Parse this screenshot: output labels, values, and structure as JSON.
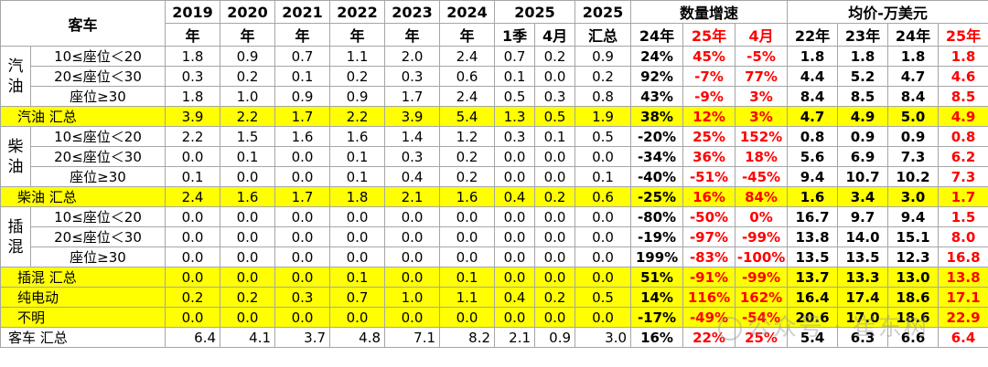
{
  "header": {
    "category": "客车",
    "years": [
      {
        "top": "2019",
        "bottom": "年"
      },
      {
        "top": "2020",
        "bottom": "年"
      },
      {
        "top": "2021",
        "bottom": "年"
      },
      {
        "top": "2022",
        "bottom": "年"
      },
      {
        "top": "2023",
        "bottom": "年"
      },
      {
        "top": "2024",
        "bottom": "年"
      }
    ],
    "y2025": "2025",
    "q1": "1季",
    "apr": "4月",
    "y2025sum_top": "2025",
    "y2025sum_bottom": "汇总",
    "growth": "数量增速",
    "growth_cols": [
      "24年",
      "25年",
      "4月"
    ],
    "price": "均价-万美元",
    "price_cols": [
      "22年",
      "23年",
      "24年",
      "25年"
    ]
  },
  "groups": {
    "gasoline": "汽\n油",
    "diesel": "柴\n油",
    "phev": "插\n混"
  },
  "rows": [
    {
      "label": "10≤座位＜20",
      "v": [
        "1.8",
        "0.9",
        "0.7",
        "1.1",
        "2.0",
        "2.4",
        "0.7",
        "0.2",
        "0.9"
      ],
      "g": [
        "24%",
        "45%",
        "-5%"
      ],
      "p": [
        "1.8",
        "1.8",
        "1.8",
        "1.8"
      ]
    },
    {
      "label": "20≤座位＜30",
      "v": [
        "0.3",
        "0.2",
        "0.1",
        "0.2",
        "0.3",
        "0.6",
        "0.1",
        "0.0",
        "0.2"
      ],
      "g": [
        "92%",
        "-7%",
        "77%"
      ],
      "p": [
        "4.4",
        "5.2",
        "4.7",
        "4.6"
      ]
    },
    {
      "label": "座位≥30",
      "v": [
        "1.8",
        "1.0",
        "0.9",
        "0.9",
        "1.7",
        "2.4",
        "0.5",
        "0.3",
        "0.8"
      ],
      "g": [
        "43%",
        "-9%",
        "3%"
      ],
      "p": [
        "8.4",
        "8.5",
        "8.4",
        "8.5"
      ]
    },
    {
      "label": "汽油 汇总",
      "v": [
        "3.9",
        "2.2",
        "1.7",
        "2.2",
        "3.9",
        "5.4",
        "1.3",
        "0.5",
        "1.9"
      ],
      "g": [
        "38%",
        "12%",
        "3%"
      ],
      "p": [
        "4.7",
        "4.9",
        "5.0",
        "4.9"
      ]
    },
    {
      "label": "10≤座位＜20",
      "v": [
        "2.2",
        "1.5",
        "1.6",
        "1.6",
        "1.4",
        "1.2",
        "0.3",
        "0.1",
        "0.5"
      ],
      "g": [
        "-20%",
        "25%",
        "152%"
      ],
      "p": [
        "0.8",
        "0.9",
        "0.9",
        "0.8"
      ]
    },
    {
      "label": "20≤座位＜30",
      "v": [
        "0.0",
        "0.1",
        "0.0",
        "0.1",
        "0.3",
        "0.2",
        "0.0",
        "0.0",
        "0.0"
      ],
      "g": [
        "-34%",
        "36%",
        "18%"
      ],
      "p": [
        "5.6",
        "6.9",
        "7.3",
        "6.2"
      ]
    },
    {
      "label": "座位≥30",
      "v": [
        "0.1",
        "0.0",
        "0.0",
        "0.1",
        "0.4",
        "0.2",
        "0.0",
        "0.0",
        "0.1"
      ],
      "g": [
        "-40%",
        "-51%",
        "-45%"
      ],
      "p": [
        "9.4",
        "10.7",
        "10.2",
        "7.3"
      ]
    },
    {
      "label": "柴油 汇总",
      "v": [
        "2.4",
        "1.6",
        "1.7",
        "1.8",
        "2.1",
        "1.6",
        "0.4",
        "0.2",
        "0.6"
      ],
      "g": [
        "-25%",
        "16%",
        "84%"
      ],
      "p": [
        "1.6",
        "3.4",
        "3.0",
        "1.7"
      ]
    },
    {
      "label": "10≤座位＜20",
      "v": [
        "0.0",
        "0.0",
        "0.0",
        "0.0",
        "0.0",
        "0.0",
        "0.0",
        "0.0",
        "0.0"
      ],
      "g": [
        "-80%",
        "-50%",
        "0%"
      ],
      "p": [
        "16.7",
        "9.7",
        "9.4",
        "1.5"
      ]
    },
    {
      "label": "20≤座位＜30",
      "v": [
        "0.0",
        "0.0",
        "0.0",
        "0.0",
        "0.0",
        "0.0",
        "0.0",
        "0.0",
        "0.0"
      ],
      "g": [
        "-19%",
        "-97%",
        "-99%"
      ],
      "p": [
        "13.8",
        "14.0",
        "15.1",
        "8.0"
      ]
    },
    {
      "label": "座位≥30",
      "v": [
        "0.0",
        "0.0",
        "0.0",
        "0.0",
        "0.0",
        "0.0",
        "0.0",
        "0.0",
        "0.0"
      ],
      "g": [
        "199%",
        "-83%",
        "-100%"
      ],
      "p": [
        "13.5",
        "13.5",
        "12.3",
        "16.8"
      ]
    },
    {
      "label": "插混 汇总",
      "v": [
        "0.0",
        "0.0",
        "0.0",
        "0.1",
        "0.0",
        "0.1",
        "0.0",
        "0.0",
        "0.0"
      ],
      "g": [
        "51%",
        "-91%",
        "-99%"
      ],
      "p": [
        "13.7",
        "13.3",
        "13.0",
        "13.8"
      ]
    },
    {
      "label": "纯电动",
      "v": [
        "0.2",
        "0.2",
        "0.3",
        "0.7",
        "1.0",
        "1.1",
        "0.4",
        "0.2",
        "0.5"
      ],
      "g": [
        "14%",
        "116%",
        "162%"
      ],
      "p": [
        "16.4",
        "17.4",
        "18.6",
        "17.1"
      ]
    },
    {
      "label": "不明",
      "v": [
        "0.0",
        "0.0",
        "0.0",
        "0.0",
        "0.0",
        "0.0",
        "0.0",
        "0.0",
        "0.0"
      ],
      "g": [
        "-17%",
        "-49%",
        "-54%"
      ],
      "p": [
        "20.6",
        "17.0",
        "18.6",
        "22.9"
      ]
    },
    {
      "label": "客车 汇总",
      "v": [
        "6.4",
        "4.1",
        "3.7",
        "4.8",
        "7.1",
        "8.2",
        "2.1",
        "0.9",
        "3.0"
      ],
      "g": [
        "16%",
        "22%",
        "25%"
      ],
      "p": [
        "5.4",
        "6.3",
        "6.6",
        "6.4"
      ]
    }
  ],
  "watermark": "公众号 · 崔东树",
  "colors": {
    "highlight": "#ffff00",
    "negative_accent": "#ff0000"
  }
}
